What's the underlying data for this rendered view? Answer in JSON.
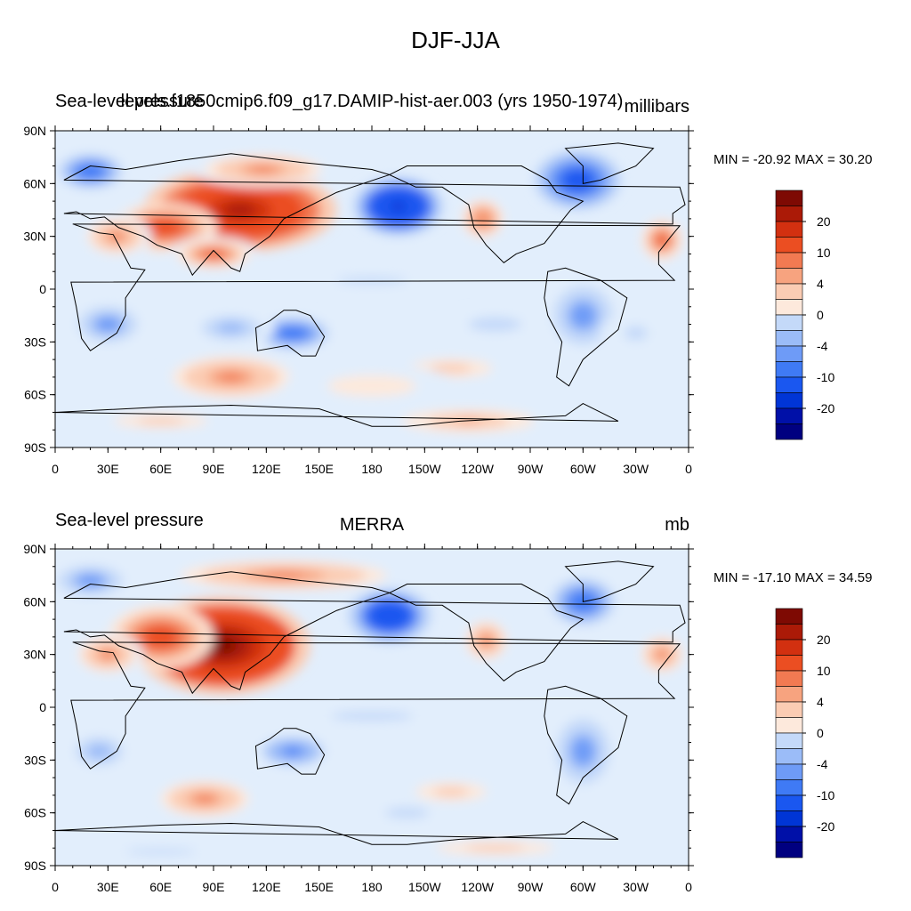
{
  "figure": {
    "title": "DJF-JJA"
  },
  "colors": {
    "palette": [
      "#000080",
      "#0010a8",
      "#0035d6",
      "#1a57f0",
      "#3f7af5",
      "#6e9bf7",
      "#9bbcf8",
      "#c4d9f9",
      "#e2eefc",
      "#fde9dc",
      "#fbccb3",
      "#f7a37f",
      "#f27a52",
      "#eb4e22",
      "#d23010",
      "#ab1a07",
      "#7e0a03"
    ],
    "land_outline": "#000000"
  },
  "panels": [
    {
      "left_title": "Sea-level pressure",
      "center_title": "levels.f1850cmip6.f09_g17.DAMIP-hist-aer.003 (yrs 1950-1974)",
      "right_title": "millibars",
      "min_max": "MIN = -20.92 MAX =  30.20",
      "y_ticks": [
        "90N",
        "60N",
        "30N",
        "0",
        "30S",
        "60S",
        "90S"
      ],
      "x_ticks": [
        "0",
        "30E",
        "60E",
        "90E",
        "120E",
        "150E",
        "180",
        "150W",
        "120W",
        "90W",
        "60W",
        "30W",
        "0"
      ],
      "colorbar_labels": [
        "20",
        "10",
        "4",
        "0",
        "-4",
        "-10",
        "-20"
      ]
    },
    {
      "left_title": "Sea-level pressure",
      "center_title": "MERRA",
      "right_title": "mb",
      "min_max": "MIN = -17.10 MAX =  34.59",
      "y_ticks": [
        "90N",
        "60N",
        "30N",
        "0",
        "30S",
        "60S",
        "90S"
      ],
      "x_ticks": [
        "0",
        "30E",
        "60E",
        "90E",
        "120E",
        "150E",
        "180",
        "150W",
        "120W",
        "90W",
        "60W",
        "30W",
        "0"
      ],
      "colorbar_labels": [
        "20",
        "10",
        "4",
        "0",
        "-4",
        "-10",
        "-20"
      ]
    }
  ],
  "chart_data": [
    {
      "type": "heatmap",
      "title": "levels.f1850cmip6.f09_g17.DAMIP-hist-aer.003 (yrs 1950-1974)",
      "variable": "Sea-level pressure",
      "units": "millibars",
      "min": -20.92,
      "max": 30.2,
      "xlim": [
        0,
        360
      ],
      "ylim": [
        -90,
        90
      ],
      "contour_levels": [
        -30,
        -25,
        -20,
        -15,
        -10,
        -8,
        -6,
        -4,
        -2,
        0,
        2,
        4,
        6,
        8,
        10,
        15,
        20,
        25,
        30
      ],
      "features": [
        {
          "lon": 105,
          "lat": 45,
          "value": 28,
          "rx": 55,
          "ry": 24
        },
        {
          "lon": 62,
          "lat": 35,
          "value": 12,
          "rx": 30,
          "ry": 14
        },
        {
          "lon": 35,
          "lat": 30,
          "value": 8,
          "rx": 20,
          "ry": 12
        },
        {
          "lon": 90,
          "lat": 20,
          "value": 10,
          "rx": 25,
          "ry": 10
        },
        {
          "lon": 118,
          "lat": 68,
          "value": 8,
          "rx": 40,
          "ry": 10
        },
        {
          "lon": 195,
          "lat": 47,
          "value": -22,
          "rx": 26,
          "ry": 17
        },
        {
          "lon": 243,
          "lat": 40,
          "value": 9,
          "rx": 14,
          "ry": 13
        },
        {
          "lon": 297,
          "lat": 62,
          "value": -14,
          "rx": 25,
          "ry": 17
        },
        {
          "lon": 20,
          "lat": 67,
          "value": -10,
          "rx": 22,
          "ry": 12
        },
        {
          "lon": 345,
          "lat": 28,
          "value": 10,
          "rx": 14,
          "ry": 14
        },
        {
          "lon": 30,
          "lat": -20,
          "value": -8,
          "rx": 20,
          "ry": 12
        },
        {
          "lon": 135,
          "lat": -25,
          "value": -10,
          "rx": 25,
          "ry": 11
        },
        {
          "lon": 100,
          "lat": -22,
          "value": -6,
          "rx": 25,
          "ry": 10
        },
        {
          "lon": 300,
          "lat": -15,
          "value": -8,
          "rx": 20,
          "ry": 20
        },
        {
          "lon": 250,
          "lat": -20,
          "value": -4,
          "rx": 30,
          "ry": 8
        },
        {
          "lon": 100,
          "lat": -50,
          "value": 8,
          "rx": 40,
          "ry": 14
        },
        {
          "lon": 225,
          "lat": -45,
          "value": 5,
          "rx": 35,
          "ry": 8
        },
        {
          "lon": 180,
          "lat": -55,
          "value": 3,
          "rx": 50,
          "ry": 12
        },
        {
          "lon": 235,
          "lat": -75,
          "value": 6,
          "rx": 45,
          "ry": 8
        },
        {
          "lon": 60,
          "lat": -75,
          "value": 5,
          "rx": 40,
          "ry": 6
        },
        {
          "lon": 180,
          "lat": 5,
          "value": -3,
          "rx": 60,
          "ry": 6
        },
        {
          "lon": 330,
          "lat": -25,
          "value": -3,
          "rx": 20,
          "ry": 12
        }
      ]
    },
    {
      "type": "heatmap",
      "title": "MERRA",
      "variable": "Sea-level pressure",
      "units": "mb",
      "min": -17.1,
      "max": 34.59,
      "xlim": [
        0,
        360
      ],
      "ylim": [
        -90,
        90
      ],
      "contour_levels": [
        -30,
        -25,
        -20,
        -15,
        -10,
        -8,
        -6,
        -4,
        -2,
        0,
        2,
        4,
        6,
        8,
        10,
        15,
        20,
        25,
        30
      ],
      "features": [
        {
          "lon": 95,
          "lat": 35,
          "value": 30,
          "rx": 50,
          "ry": 28
        },
        {
          "lon": 60,
          "lat": 40,
          "value": 12,
          "rx": 30,
          "ry": 18
        },
        {
          "lon": 130,
          "lat": 75,
          "value": 8,
          "rx": 70,
          "ry": 10
        },
        {
          "lon": 30,
          "lat": 30,
          "value": 8,
          "rx": 20,
          "ry": 12
        },
        {
          "lon": 190,
          "lat": 52,
          "value": -18,
          "rx": 24,
          "ry": 16
        },
        {
          "lon": 245,
          "lat": 38,
          "value": 8,
          "rx": 14,
          "ry": 13
        },
        {
          "lon": 300,
          "lat": 60,
          "value": -10,
          "rx": 22,
          "ry": 16
        },
        {
          "lon": 20,
          "lat": 72,
          "value": -8,
          "rx": 22,
          "ry": 10
        },
        {
          "lon": 345,
          "lat": 30,
          "value": 8,
          "rx": 14,
          "ry": 12
        },
        {
          "lon": 25,
          "lat": -25,
          "value": -6,
          "rx": 20,
          "ry": 12
        },
        {
          "lon": 135,
          "lat": -25,
          "value": -9,
          "rx": 22,
          "ry": 10
        },
        {
          "lon": 300,
          "lat": -25,
          "value": -8,
          "rx": 18,
          "ry": 22
        },
        {
          "lon": 85,
          "lat": -52,
          "value": 8,
          "rx": 30,
          "ry": 12
        },
        {
          "lon": 225,
          "lat": -48,
          "value": 5,
          "rx": 30,
          "ry": 8
        },
        {
          "lon": 200,
          "lat": -60,
          "value": -4,
          "rx": 25,
          "ry": 6
        },
        {
          "lon": 180,
          "lat": -5,
          "value": -3,
          "rx": 70,
          "ry": 8
        },
        {
          "lon": 250,
          "lat": -80,
          "value": 5,
          "rx": 50,
          "ry": 6
        },
        {
          "lon": 60,
          "lat": -82,
          "value": -3,
          "rx": 60,
          "ry": 5
        }
      ]
    }
  ]
}
